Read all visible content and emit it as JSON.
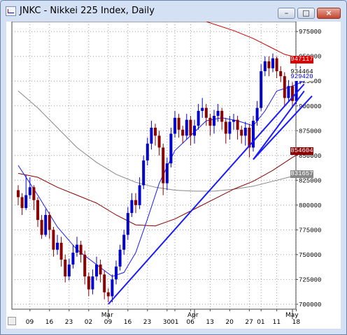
{
  "window": {
    "title": "JNKC - Nikkei 225 Index, Daily",
    "buttons": {
      "minimize": "–",
      "maximize": "□",
      "close": "×"
    }
  },
  "colors": {
    "bull": "#0000cc",
    "bear": "#8b0000",
    "trendline": "#1a1aff",
    "ma_short": "#1a1aff",
    "ma_mid": "#8b0000",
    "ma_long": "#888888",
    "ma_red": "#cc0000"
  },
  "chart_data": {
    "type": "candlestick",
    "ylim": [
      695000,
      985000
    ],
    "y_ticks": [
      700000,
      725000,
      750000,
      775000,
      800000,
      825000,
      850000,
      875000,
      900000,
      925000,
      950000,
      975000
    ],
    "y_tick_labels": [
      "700000",
      "725000",
      "750000",
      "775000",
      "800000",
      "825000",
      "850000",
      "875000",
      "900000",
      "925000",
      "950000",
      "975000"
    ],
    "month_labels": [
      {
        "i": 23,
        "text": "Mar"
      },
      {
        "i": 45,
        "text": "Apr"
      },
      {
        "i": 70,
        "text": "May"
      }
    ],
    "date_labels": [
      {
        "i": 3,
        "text": "09"
      },
      {
        "i": 8,
        "text": "16"
      },
      {
        "i": 13,
        "text": "23"
      },
      {
        "i": 18,
        "text": "02"
      },
      {
        "i": 23,
        "text": "09"
      },
      {
        "i": 28,
        "text": "16"
      },
      {
        "i": 33,
        "text": "23"
      },
      {
        "i": 38,
        "text": "30"
      },
      {
        "i": 40,
        "text": "01"
      },
      {
        "i": 44,
        "text": "06"
      },
      {
        "i": 49,
        "text": "13"
      },
      {
        "i": 54,
        "text": "20"
      },
      {
        "i": 59,
        "text": "27"
      },
      {
        "i": 62,
        "text": "01"
      },
      {
        "i": 66,
        "text": "11"
      },
      {
        "i": 71,
        "text": "18"
      }
    ],
    "price_tags": [
      {
        "label": "947117",
        "value": 947117,
        "bg": "#dd0000",
        "fg": "#ffffff"
      },
      {
        "label": "934464",
        "value": 934464,
        "bg": "#ffffff",
        "fg": "#000000"
      },
      {
        "label": "929420",
        "value": 929420,
        "bg": "#ffffff",
        "fg": "#0000cc"
      },
      {
        "label": "854604",
        "value": 854604,
        "bg": "#8b0000",
        "fg": "#ffffff"
      },
      {
        "label": "831657",
        "value": 831657,
        "bg": "#888888",
        "fg": "#ffffff"
      }
    ],
    "candles": [
      [
        815000,
        808000,
        820000,
        800000
      ],
      [
        808000,
        797000,
        812000,
        790000
      ],
      [
        797000,
        810000,
        830000,
        795000
      ],
      [
        810000,
        818000,
        828000,
        806000
      ],
      [
        818000,
        805000,
        820000,
        795000
      ],
      [
        805000,
        785000,
        808000,
        778000
      ],
      [
        785000,
        770000,
        790000,
        766000
      ],
      [
        770000,
        790000,
        796000,
        768000
      ],
      [
        790000,
        775000,
        793000,
        766000
      ],
      [
        775000,
        755000,
        778000,
        748000
      ],
      [
        755000,
        762000,
        770000,
        750000
      ],
      [
        762000,
        745000,
        768000,
        738000
      ],
      [
        745000,
        728000,
        750000,
        722000
      ],
      [
        728000,
        740000,
        746000,
        724000
      ],
      [
        740000,
        752000,
        760000,
        736000
      ],
      [
        752000,
        760000,
        768000,
        748000
      ],
      [
        760000,
        750000,
        764000,
        742000
      ],
      [
        750000,
        728000,
        754000,
        720000
      ],
      [
        728000,
        715000,
        732000,
        708000
      ],
      [
        715000,
        728000,
        735000,
        710000
      ],
      [
        728000,
        740000,
        748000,
        724000
      ],
      [
        740000,
        730000,
        745000,
        722000
      ],
      [
        730000,
        712000,
        734000,
        705000
      ],
      [
        712000,
        708000,
        716000,
        702000
      ],
      [
        708000,
        725000,
        730000,
        702000
      ],
      [
        725000,
        738000,
        744000,
        720000
      ],
      [
        738000,
        755000,
        760000,
        734000
      ],
      [
        755000,
        770000,
        775000,
        750000
      ],
      [
        770000,
        792000,
        798000,
        765000
      ],
      [
        792000,
        805000,
        812000,
        788000
      ],
      [
        805000,
        800000,
        812000,
        792000
      ],
      [
        800000,
        820000,
        828000,
        796000
      ],
      [
        820000,
        845000,
        850000,
        816000
      ],
      [
        845000,
        862000,
        868000,
        840000
      ],
      [
        862000,
        878000,
        885000,
        856000
      ],
      [
        878000,
        870000,
        882000,
        860000
      ],
      [
        870000,
        858000,
        875000,
        850000
      ],
      [
        858000,
        822000,
        862000,
        810000
      ],
      [
        822000,
        842000,
        848000,
        815000
      ],
      [
        842000,
        872000,
        878000,
        838000
      ],
      [
        872000,
        888000,
        895000,
        868000
      ],
      [
        888000,
        876000,
        892000,
        868000
      ],
      [
        876000,
        870000,
        880000,
        862000
      ],
      [
        870000,
        886000,
        892000,
        866000
      ],
      [
        886000,
        870000,
        890000,
        860000
      ],
      [
        870000,
        880000,
        886000,
        862000
      ],
      [
        880000,
        895000,
        902000,
        876000
      ],
      [
        895000,
        898000,
        908000,
        888000
      ],
      [
        898000,
        888000,
        902000,
        880000
      ],
      [
        888000,
        880000,
        892000,
        870000
      ],
      [
        880000,
        890000,
        896000,
        872000
      ],
      [
        890000,
        895000,
        902000,
        884000
      ],
      [
        895000,
        884000,
        898000,
        876000
      ],
      [
        884000,
        872000,
        888000,
        862000
      ],
      [
        872000,
        884000,
        890000,
        866000
      ],
      [
        884000,
        886000,
        892000,
        876000
      ],
      [
        886000,
        876000,
        890000,
        866000
      ],
      [
        876000,
        870000,
        880000,
        862000
      ],
      [
        870000,
        878000,
        884000,
        860000
      ],
      [
        878000,
        858000,
        882000,
        848000
      ],
      [
        858000,
        885000,
        890000,
        854000
      ],
      [
        885000,
        898000,
        905000,
        880000
      ],
      [
        898000,
        935000,
        942000,
        895000
      ],
      [
        935000,
        945000,
        950000,
        930000
      ],
      [
        945000,
        938000,
        950000,
        930000
      ],
      [
        938000,
        948000,
        953000,
        934000
      ],
      [
        948000,
        935000,
        950000,
        928000
      ],
      [
        935000,
        930000,
        940000,
        924000
      ],
      [
        930000,
        908000,
        934000,
        900000
      ],
      [
        908000,
        920000,
        926000,
        904000
      ],
      [
        920000,
        905000,
        924000,
        898000
      ],
      [
        905000,
        925000,
        930000,
        902000
      ],
      [
        925000,
        934464,
        940000,
        922000
      ]
    ],
    "ma_short": [
      [
        0,
        840000
      ],
      [
        5,
        810000
      ],
      [
        10,
        778000
      ],
      [
        15,
        755000
      ],
      [
        20,
        740000
      ],
      [
        24,
        728000
      ],
      [
        27,
        732000
      ],
      [
        30,
        752000
      ],
      [
        33,
        786000
      ],
      [
        36,
        822000
      ],
      [
        40,
        855000
      ],
      [
        44,
        870000
      ],
      [
        48,
        885000
      ],
      [
        52,
        888000
      ],
      [
        56,
        885000
      ],
      [
        60,
        880000
      ],
      [
        63,
        895000
      ],
      [
        66,
        915000
      ],
      [
        70,
        920000
      ],
      [
        73,
        925000
      ]
    ],
    "ma_mid": [
      [
        0,
        832000
      ],
      [
        5,
        828000
      ],
      [
        10,
        818000
      ],
      [
        15,
        810000
      ],
      [
        20,
        802000
      ],
      [
        25,
        790000
      ],
      [
        30,
        780000
      ],
      [
        35,
        779000
      ],
      [
        40,
        786000
      ],
      [
        45,
        796000
      ],
      [
        50,
        806000
      ],
      [
        55,
        816000
      ],
      [
        60,
        824000
      ],
      [
        65,
        835000
      ],
      [
        70,
        848000
      ],
      [
        73,
        854604
      ]
    ],
    "ma_long": [
      [
        0,
        915000
      ],
      [
        5,
        898000
      ],
      [
        10,
        878000
      ],
      [
        15,
        858000
      ],
      [
        20,
        843000
      ],
      [
        25,
        831000
      ],
      [
        30,
        823000
      ],
      [
        35,
        818000
      ],
      [
        40,
        815000
      ],
      [
        45,
        814000
      ],
      [
        50,
        814000
      ],
      [
        55,
        816000
      ],
      [
        60,
        819000
      ],
      [
        65,
        824000
      ],
      [
        70,
        829000
      ],
      [
        73,
        831657
      ]
    ],
    "ma_red": [
      [
        48,
        985000
      ],
      [
        55,
        976000
      ],
      [
        60,
        968000
      ],
      [
        64,
        960000
      ],
      [
        68,
        952000
      ],
      [
        73,
        947117
      ]
    ],
    "trendlines": [
      [
        [
          23,
          700000
        ],
        [
          73,
          922000
        ]
      ],
      [
        [
          60,
          846000
        ],
        [
          73,
          915000
        ]
      ],
      [
        [
          60,
          846000
        ],
        [
          75,
          910000
        ]
      ]
    ]
  }
}
